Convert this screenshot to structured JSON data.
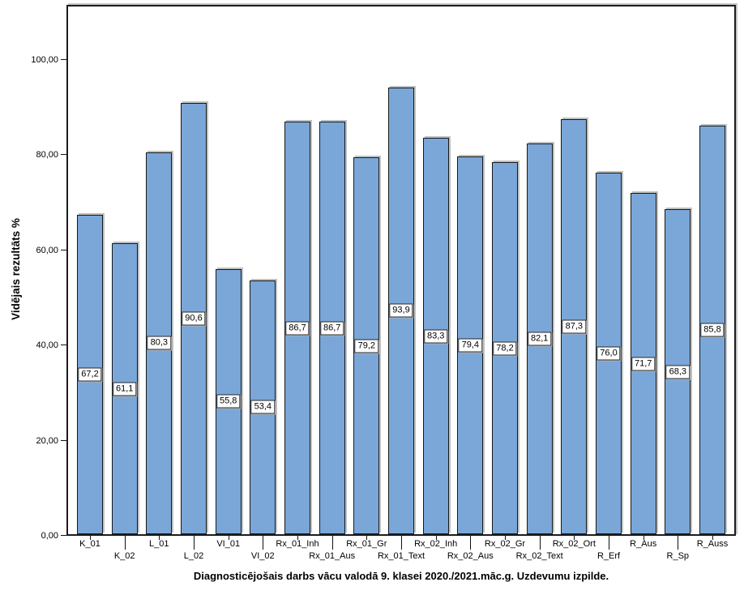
{
  "chart_data": {
    "type": "bar",
    "title": "Diagnosticējošais darbs vācu valodā 9. klasei 2020./2021.māc.g. Uzdevumu izpilde.",
    "title_position": "bottom",
    "ylabel": "Vidējais rezultāts %",
    "xlabel": "",
    "categories": [
      "K_01",
      "K_02",
      "L_01",
      "L_02",
      "VI_01",
      "VI_02",
      "Rx_01_Inh",
      "Rx_01_Aus",
      "Rx_01_Gr",
      "Rx_01_Text",
      "Rx_02_Inh",
      "Rx_02_Aus",
      "Rx_02_Gr",
      "Rx_02_Text",
      "Rx_02_Ort",
      "R_Erf",
      "R_Aus",
      "R_Sp",
      "R_Auss"
    ],
    "values": [
      67.2,
      61.1,
      80.3,
      90.6,
      55.8,
      53.4,
      86.7,
      86.7,
      79.2,
      93.9,
      83.3,
      79.4,
      78.2,
      82.1,
      87.3,
      76.0,
      71.7,
      68.3,
      85.8
    ],
    "value_labels": [
      "67,2",
      "61,1",
      "80,3",
      "90,6",
      "55,8",
      "53,4",
      "86,7",
      "86,7",
      "79,2",
      "93,9",
      "83,3",
      "79,4",
      "78,2",
      "82,1",
      "87,3",
      "76,0",
      "71,7",
      "68,3",
      "85,8"
    ],
    "y_ticks": [
      {
        "value": 0,
        "label": "0,00"
      },
      {
        "value": 20,
        "label": "20,00"
      },
      {
        "value": 40,
        "label": "40,00"
      },
      {
        "value": 60,
        "label": "60,00"
      },
      {
        "value": 80,
        "label": "80,00"
      },
      {
        "value": 100,
        "label": "100,00"
      }
    ],
    "ylim": [
      0,
      111
    ],
    "grid": false,
    "legend": "none",
    "bar_color": "#7aa7d7",
    "bar_border_color": "#16191d",
    "label_box_bg": "#ffffff",
    "x_labels_staggered": true
  }
}
